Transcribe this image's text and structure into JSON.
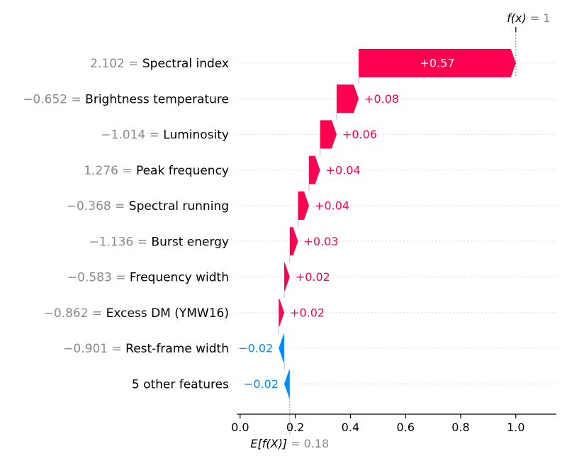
{
  "chart_data": {
    "type": "waterfall",
    "base_value": 0.18,
    "final_value": 1,
    "base_label": {
      "prefix": "E[f(X)]",
      "eq": " = 0.18"
    },
    "final_label": {
      "prefix": "f(x)",
      "eq": " = 1"
    },
    "xlim": [
      -0.01,
      1.15
    ],
    "x_ticks": [
      0.0,
      0.2,
      0.4,
      0.6,
      0.8,
      1.0
    ],
    "x_tick_labels": [
      "0.0",
      "0.2",
      "0.4",
      "0.6",
      "0.8",
      "1.0"
    ],
    "features": [
      {
        "value": "2.102",
        "name": "Spectral index",
        "contribution": 0.57,
        "label": "+0.57"
      },
      {
        "value": "−0.652",
        "name": "Brightness temperature",
        "contribution": 0.08,
        "label": "+0.08"
      },
      {
        "value": "−1.014",
        "name": "Luminosity",
        "contribution": 0.06,
        "label": "+0.06"
      },
      {
        "value": "1.276",
        "name": "Peak frequency",
        "contribution": 0.04,
        "label": "+0.04"
      },
      {
        "value": "−0.368",
        "name": "Spectral running",
        "contribution": 0.04,
        "label": "+0.04"
      },
      {
        "value": "−1.136",
        "name": "Burst energy",
        "contribution": 0.03,
        "label": "+0.03"
      },
      {
        "value": "−0.583",
        "name": "Frequency width",
        "contribution": 0.02,
        "label": "+0.02"
      },
      {
        "value": "−0.862",
        "name": "Excess DM (YMW16)",
        "contribution": 0.02,
        "label": "+0.02"
      },
      {
        "value": "−0.901",
        "name": "Rest-frame width",
        "contribution": -0.02,
        "label": "−0.02"
      },
      {
        "value": "",
        "name": "5 other features",
        "contribution": -0.02,
        "label": "−0.02"
      }
    ],
    "colors": {
      "positive": "#ff0051",
      "negative": "#008bfb",
      "muted": "#8a8a8a",
      "axis": "#000000"
    }
  }
}
